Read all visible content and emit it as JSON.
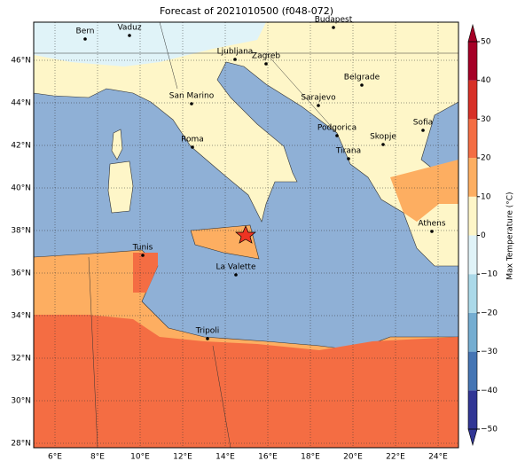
{
  "title": "Forecast of 2021010500 (f048-072)",
  "lon_ticks": [
    {
      "value": 6,
      "label": "6°E"
    },
    {
      "value": 8,
      "label": "8°E"
    },
    {
      "value": 10,
      "label": "10°E"
    },
    {
      "value": 12,
      "label": "12°E"
    },
    {
      "value": 14,
      "label": "14°E"
    },
    {
      "value": 16,
      "label": "16°E"
    },
    {
      "value": 18,
      "label": "18°E"
    },
    {
      "value": 20,
      "label": "20°E"
    },
    {
      "value": 22,
      "label": "22°E"
    },
    {
      "value": 24,
      "label": "24°E"
    }
  ],
  "lat_ticks": [
    {
      "value": 28,
      "label": "28°N"
    },
    {
      "value": 30,
      "label": "30°N"
    },
    {
      "value": 32,
      "label": "32°N"
    },
    {
      "value": 34,
      "label": "34°N"
    },
    {
      "value": 36,
      "label": "36°N"
    },
    {
      "value": 38,
      "label": "38°N"
    },
    {
      "value": 40,
      "label": "40°N"
    },
    {
      "value": 42,
      "label": "42°N"
    },
    {
      "value": 44,
      "label": "44°N"
    },
    {
      "value": 46,
      "label": "46°N"
    }
  ],
  "cities": [
    "Bern",
    "Vaduz",
    "Budapest",
    "Ljubljana",
    "Zagreb",
    "Belgrade",
    "San Marino",
    "Sarajevo",
    "Sofia",
    "Roma",
    "Podgorica",
    "Skopje",
    "Tirana",
    "Athens",
    "Tunis",
    "La Valette",
    "Tripoli"
  ],
  "colorbar": {
    "label": "Max Temperature (°C)",
    "ticks": [
      {
        "value": -50,
        "label": "−50"
      },
      {
        "value": -40,
        "label": "−40"
      },
      {
        "value": -30,
        "label": "−30"
      },
      {
        "value": -20,
        "label": "−20"
      },
      {
        "value": -10,
        "label": "−10"
      },
      0,
      10,
      20,
      30,
      40,
      50
    ],
    "colors": [
      "#313695",
      "#4575b4",
      "#74add1",
      "#abd9e9",
      "#e0f3f8",
      "#fef6c8",
      "#fdae61",
      "#f46d43",
      "#d73027",
      "#a50026"
    ]
  }
}
